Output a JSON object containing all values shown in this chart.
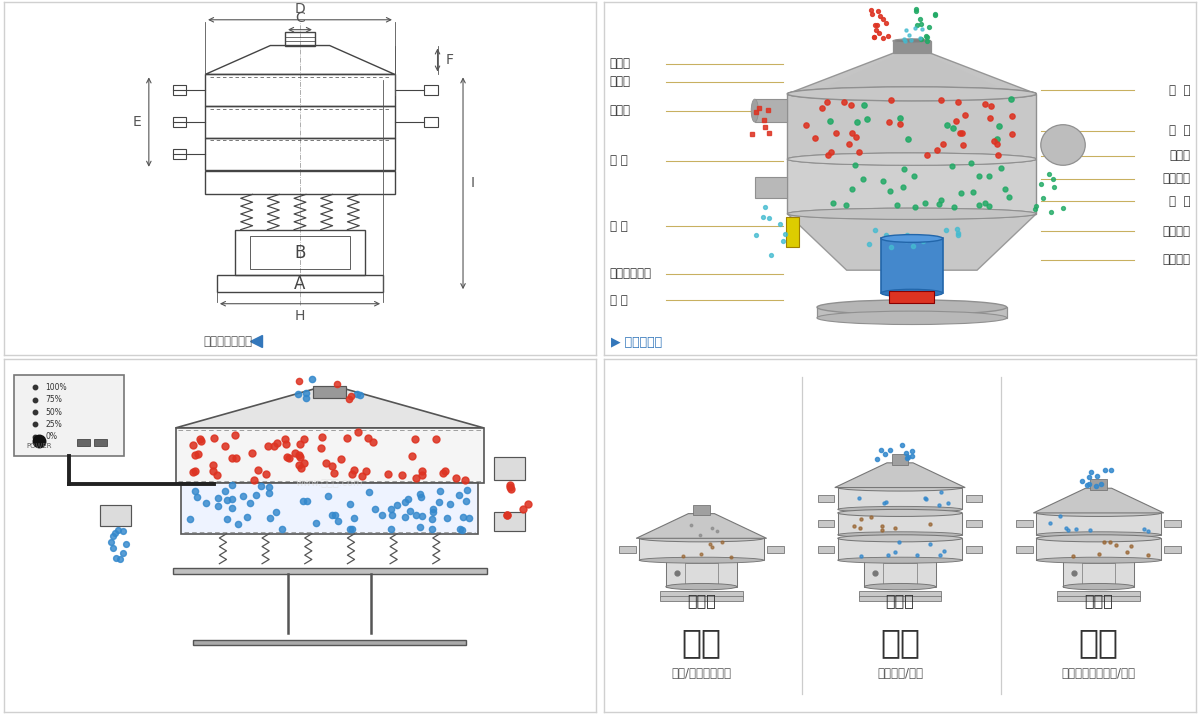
{
  "bg_color": "#ffffff",
  "border_color": "#d0d0d0",
  "drawing_color": "#444444",
  "dim_color": "#555555",
  "line_color": "#c8b060",
  "left_labels": [
    "进料口",
    "防尘盖",
    "出料口",
    "束 环",
    "弹 簧",
    "运输固定螺栓",
    "机 座"
  ],
  "right_labels": [
    "筛  网",
    "网  架",
    "加重块",
    "上部重锤",
    "筛  盘",
    "振动电机",
    "下部重锤"
  ],
  "bottom_titles": [
    "分级",
    "过滤",
    "除杂"
  ],
  "bottom_mode_labels": [
    "单层式",
    "三层式",
    "双层式"
  ],
  "bottom_subtitles": [
    "额粒/粉末准确分级",
    "去除异物/结块",
    "去除液体中的额粒/异物"
  ],
  "nav_left": "外形尺寸示意图",
  "nav_right": "结构示意图",
  "red_color": "#dd3322",
  "blue_color": "#3388cc",
  "green_color": "#22aa66",
  "cyan_color": "#44bbd0",
  "brown_color": "#996633",
  "yellow_color": "#ddcc00",
  "gray_light": "#d8d8d8",
  "gray_medium": "#b0b0b0",
  "gray_dark": "#888888"
}
